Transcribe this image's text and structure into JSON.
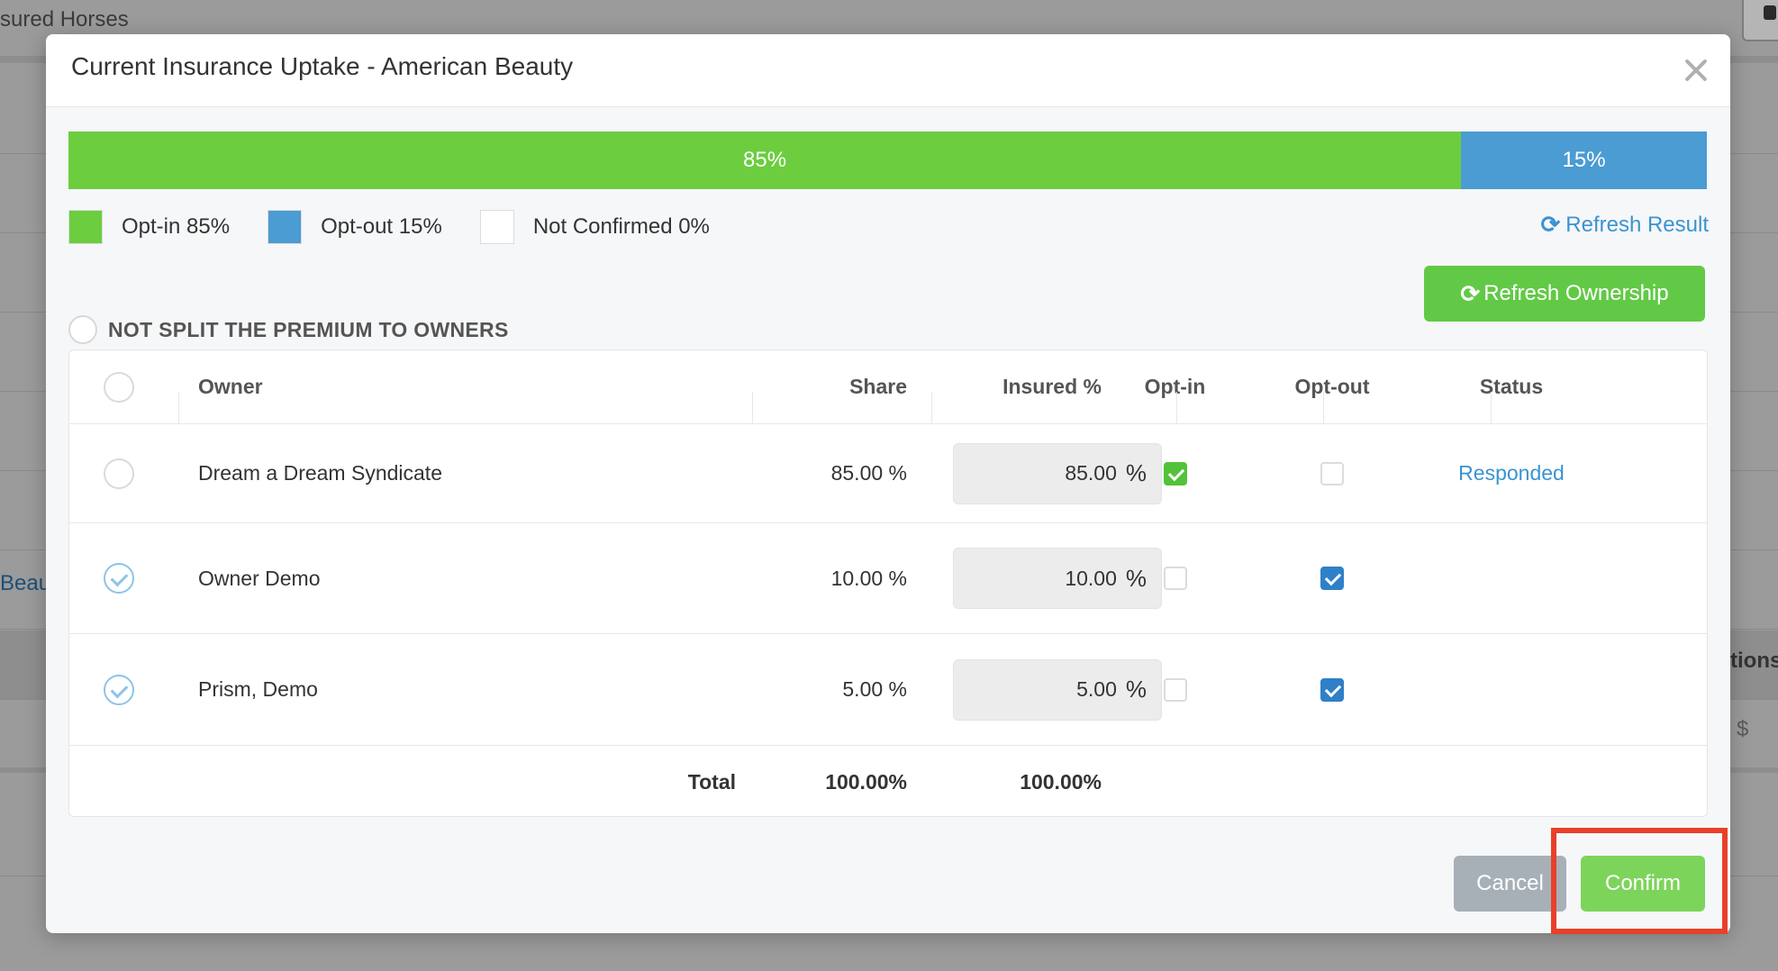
{
  "background": {
    "top_text": "sured Horses",
    "link_text": "Beaut",
    "col_text": "tions",
    "currency_symbol": "$"
  },
  "modal": {
    "title": "Current Insurance Uptake - American Beauty",
    "close_icon": "close-icon"
  },
  "progress": {
    "optin_fraction": 0.85,
    "optout_fraction": 0.15,
    "optin_label": "85%",
    "optout_label": "15%"
  },
  "legend": {
    "optin": "Opt-in 85%",
    "optout": "Opt-out 15%",
    "not_confirmed": "Not Confirmed 0%",
    "colors": {
      "optin": "#6ccd3f",
      "optout": "#4a9cd3",
      "not_confirmed": "#ffffff"
    }
  },
  "refresh_result": {
    "icon": "refresh-icon",
    "label": "Refresh Result"
  },
  "split_option": {
    "label": "NOT SPLIT THE PREMIUM TO OWNERS"
  },
  "refresh_ownership": {
    "icon": "refresh-icon",
    "label": "Refresh Ownership"
  },
  "table": {
    "headers": {
      "owner": "Owner",
      "share": "Share",
      "insured": "Insured %",
      "optin": "Opt-in",
      "optout": "Opt-out",
      "status": "Status"
    },
    "rows": [
      {
        "owner": "Dream a Dream Syndicate",
        "share": "85.00 %",
        "insured": "85.00",
        "pct": "%",
        "selected": false,
        "optin": true,
        "optout": false,
        "status": "Responded"
      },
      {
        "owner": "Owner Demo",
        "share": "10.00 %",
        "insured": "10.00",
        "pct": "%",
        "selected": true,
        "optin": false,
        "optout": true,
        "status": ""
      },
      {
        "owner": "Prism, Demo",
        "share": "5.00 %",
        "insured": "5.00",
        "pct": "%",
        "selected": true,
        "optin": false,
        "optout": true,
        "status": ""
      }
    ],
    "total": {
      "label": "Total",
      "share": "100.00%",
      "insured": "100.00%"
    }
  },
  "footer": {
    "cancel": "Cancel",
    "confirm": "Confirm",
    "highlight_color": "#e8402a"
  }
}
